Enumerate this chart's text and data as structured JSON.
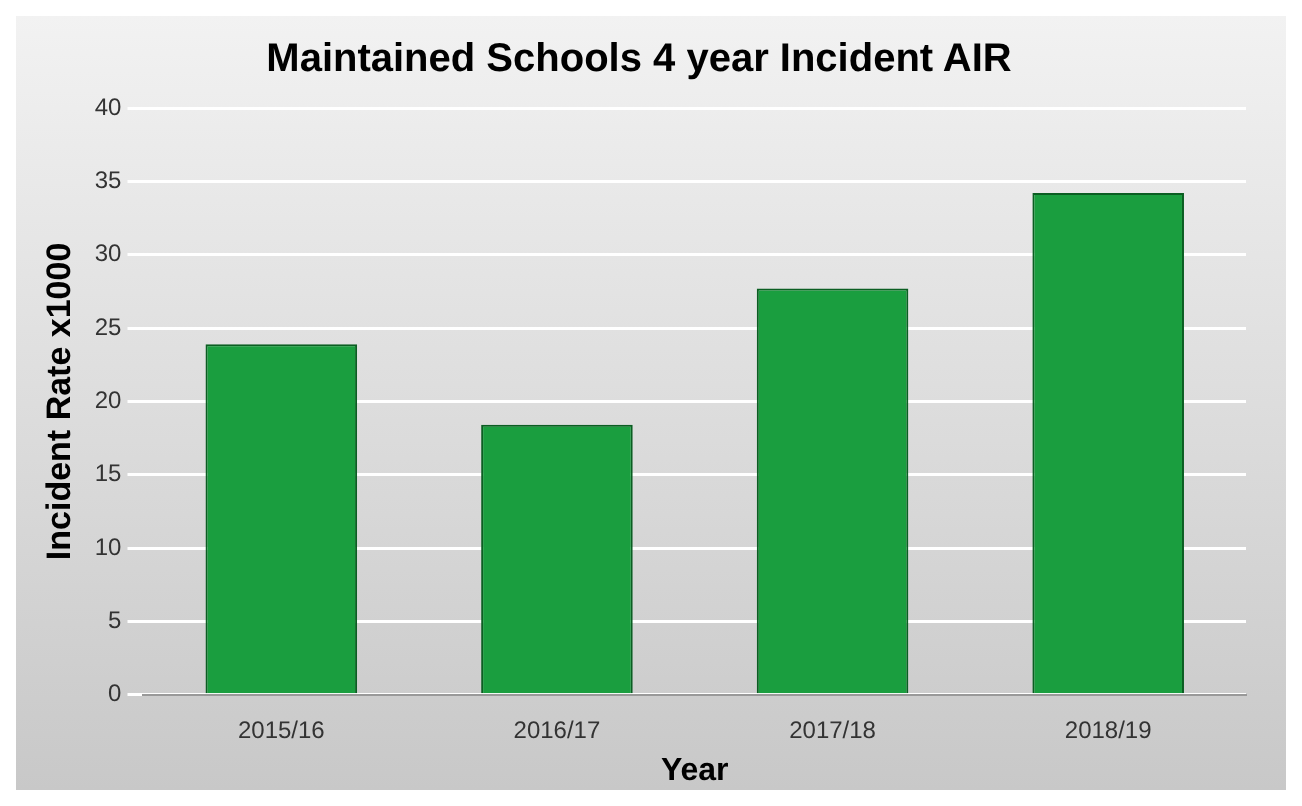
{
  "chart_data": {
    "type": "bar",
    "title": "Maintained Schools 4 year Incident AIR",
    "xlabel": "Year",
    "ylabel": "Incident Rate x1000",
    "categories": [
      "2015/16",
      "2016/17",
      "2017/18",
      "2018/19"
    ],
    "values": [
      23.9,
      18.4,
      27.7,
      34.2
    ],
    "color": "#1a9e3f",
    "ylim": [
      0,
      40
    ],
    "yticks": [
      0,
      5,
      10,
      15,
      20,
      25,
      30,
      35,
      40
    ],
    "grid": "y"
  }
}
